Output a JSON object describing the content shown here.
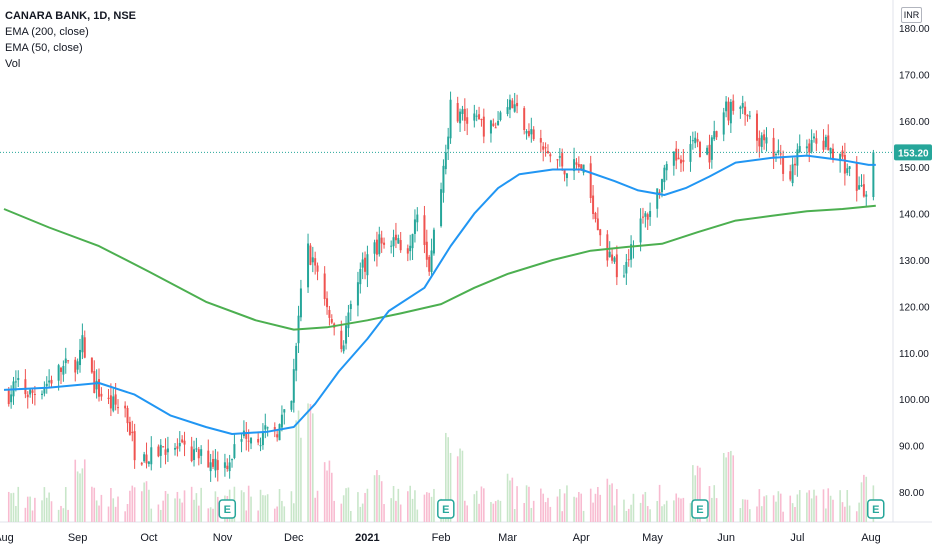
{
  "legend": {
    "symbol": "CANARA BANK, 1D, NSE",
    "ema200": "EMA (200, close)",
    "ema50": "EMA (50, close)",
    "vol": "Vol"
  },
  "currency_label": "INR",
  "earnings_marker_label": "E",
  "colors": {
    "up": "#26a69a",
    "down": "#ef5350",
    "ema200": "#4caf50",
    "ema50": "#2196f3",
    "price_tag": "#26a69a",
    "price_line": "#26a69a",
    "vol_up": "#c8e6c9",
    "vol_down": "#f8bbd0"
  },
  "chart_data": {
    "type": "candlestick",
    "y_axis": {
      "range": [
        76,
        186
      ],
      "ticks": [
        "180.00",
        "170.00",
        "160.00",
        "150.00",
        "140.00",
        "130.00",
        "120.00",
        "110.00",
        "100.00",
        "90.00",
        "80.00"
      ]
    },
    "x_axis": {
      "range_days": [
        "2020-08-01",
        "2021-08-06"
      ],
      "tick_labels": [
        {
          "date": "2020-08-01",
          "label": "Aug"
        },
        {
          "date": "2020-09-01",
          "label": "Sep"
        },
        {
          "date": "2020-10-01",
          "label": "Oct"
        },
        {
          "date": "2020-11-01",
          "label": "Nov"
        },
        {
          "date": "2020-12-01",
          "label": "Dec"
        },
        {
          "date": "2021-01-01",
          "label": "2021"
        },
        {
          "date": "2021-02-01",
          "label": "Feb"
        },
        {
          "date": "2021-03-01",
          "label": "Mar"
        },
        {
          "date": "2021-04-01",
          "label": "Apr"
        },
        {
          "date": "2021-05-01",
          "label": "May"
        },
        {
          "date": "2021-06-01",
          "label": "Jun"
        },
        {
          "date": "2021-07-01",
          "label": "Jul"
        },
        {
          "date": "2021-08-01",
          "label": "Aug"
        }
      ]
    },
    "last_price": 153.2,
    "last_price_label": "153.20",
    "earnings_dates": [
      "2020-11-03",
      "2021-02-03",
      "2021-05-21",
      "2021-08-03"
    ],
    "close_path": [
      [
        "2020-08-01",
        100
      ],
      [
        "2020-08-06",
        103
      ],
      [
        "2020-08-12",
        101
      ],
      [
        "2020-08-18",
        103
      ],
      [
        "2020-08-24",
        106
      ],
      [
        "2020-08-31",
        108
      ],
      [
        "2020-09-03",
        112
      ],
      [
        "2020-09-08",
        103
      ],
      [
        "2020-09-14",
        99
      ],
      [
        "2020-09-21",
        98
      ],
      [
        "2020-09-25",
        89
      ],
      [
        "2020-10-01",
        87
      ],
      [
        "2020-10-07",
        90
      ],
      [
        "2020-10-13",
        89
      ],
      [
        "2020-10-19",
        88
      ],
      [
        "2020-10-26",
        87
      ],
      [
        "2020-11-02",
        86
      ],
      [
        "2020-11-06",
        89
      ],
      [
        "2020-11-11",
        93
      ],
      [
        "2020-11-18",
        92
      ],
      [
        "2020-11-25",
        94
      ],
      [
        "2020-11-30",
        99
      ],
      [
        "2020-12-03",
        118
      ],
      [
        "2020-12-06",
        133
      ],
      [
        "2020-12-11",
        128
      ],
      [
        "2020-12-17",
        117
      ],
      [
        "2020-12-21",
        111
      ],
      [
        "2020-12-28",
        127
      ],
      [
        "2021-01-04",
        133
      ],
      [
        "2021-01-11",
        135
      ],
      [
        "2021-01-18",
        133
      ],
      [
        "2021-01-22",
        142
      ],
      [
        "2021-01-27",
        129
      ],
      [
        "2021-02-01",
        146
      ],
      [
        "2021-02-05",
        163
      ],
      [
        "2021-02-12",
        160
      ],
      [
        "2021-02-18",
        159
      ],
      [
        "2021-02-23",
        158
      ],
      [
        "2021-03-01",
        165
      ],
      [
        "2021-03-08",
        160
      ],
      [
        "2021-03-15",
        154
      ],
      [
        "2021-03-20",
        152
      ],
      [
        "2021-03-26",
        150
      ],
      [
        "2021-04-01",
        150
      ],
      [
        "2021-04-06",
        142
      ],
      [
        "2021-04-12",
        131
      ],
      [
        "2021-04-18",
        127
      ],
      [
        "2021-04-23",
        135
      ],
      [
        "2021-04-29",
        140
      ],
      [
        "2021-05-05",
        147
      ],
      [
        "2021-05-11",
        152
      ],
      [
        "2021-05-18",
        155
      ],
      [
        "2021-05-25",
        153
      ],
      [
        "2021-06-01",
        162
      ],
      [
        "2021-06-07",
        163
      ],
      [
        "2021-06-14",
        156
      ],
      [
        "2021-06-21",
        153
      ],
      [
        "2021-06-28",
        149
      ],
      [
        "2021-07-04",
        155
      ],
      [
        "2021-07-10",
        155
      ],
      [
        "2021-07-16",
        154
      ],
      [
        "2021-07-22",
        150
      ],
      [
        "2021-07-27",
        145
      ],
      [
        "2021-07-30",
        145
      ],
      [
        "2021-08-02",
        153.2
      ]
    ],
    "ema50": [
      [
        "2020-08-01",
        102
      ],
      [
        "2020-08-20",
        102.5
      ],
      [
        "2020-09-10",
        103.5
      ],
      [
        "2020-09-25",
        101
      ],
      [
        "2020-10-10",
        96.5
      ],
      [
        "2020-10-25",
        94
      ],
      [
        "2020-11-05",
        92.5
      ],
      [
        "2020-11-20",
        93
      ],
      [
        "2020-12-01",
        94
      ],
      [
        "2020-12-10",
        99
      ],
      [
        "2020-12-20",
        106
      ],
      [
        "2021-01-01",
        113
      ],
      [
        "2021-01-10",
        119
      ],
      [
        "2021-01-25",
        124
      ],
      [
        "2021-02-05",
        133
      ],
      [
        "2021-02-15",
        140
      ],
      [
        "2021-02-25",
        145.5
      ],
      [
        "2021-03-06",
        148.5
      ],
      [
        "2021-03-20",
        149.5
      ],
      [
        "2021-04-01",
        149.5
      ],
      [
        "2021-04-15",
        147
      ],
      [
        "2021-04-25",
        145
      ],
      [
        "2021-05-06",
        144
      ],
      [
        "2021-05-15",
        145.5
      ],
      [
        "2021-05-25",
        148
      ],
      [
        "2021-06-05",
        151
      ],
      [
        "2021-06-20",
        152
      ],
      [
        "2021-07-05",
        152.5
      ],
      [
        "2021-07-20",
        151.5
      ],
      [
        "2021-07-31",
        150.5
      ],
      [
        "2021-08-03",
        150.5
      ]
    ],
    "ema200": [
      [
        "2020-08-01",
        141
      ],
      [
        "2020-08-20",
        137
      ],
      [
        "2020-09-10",
        133
      ],
      [
        "2020-10-01",
        127.5
      ],
      [
        "2020-10-25",
        121
      ],
      [
        "2020-11-15",
        117
      ],
      [
        "2020-12-01",
        115
      ],
      [
        "2020-12-15",
        115.5
      ],
      [
        "2021-01-01",
        117
      ],
      [
        "2021-01-15",
        118.5
      ],
      [
        "2021-02-01",
        120.5
      ],
      [
        "2021-02-15",
        124
      ],
      [
        "2021-03-01",
        127
      ],
      [
        "2021-03-20",
        130
      ],
      [
        "2021-04-05",
        132
      ],
      [
        "2021-04-20",
        132.8
      ],
      [
        "2021-05-05",
        133.5
      ],
      [
        "2021-05-20",
        136
      ],
      [
        "2021-06-05",
        138.5
      ],
      [
        "2021-06-20",
        139.5
      ],
      [
        "2021-07-05",
        140.5
      ],
      [
        "2021-07-20",
        141
      ],
      [
        "2021-08-03",
        141.7
      ]
    ],
    "volume_scale_note": "relative volume 0-1",
    "volume_spikes": [
      [
        "2020-08-05",
        0.15
      ],
      [
        "2020-09-02",
        0.55
      ],
      [
        "2020-09-28",
        0.35
      ],
      [
        "2020-12-04",
        0.9
      ],
      [
        "2020-12-07",
        1.0
      ],
      [
        "2020-12-15",
        0.55
      ],
      [
        "2021-01-05",
        0.45
      ],
      [
        "2021-02-05",
        0.75
      ],
      [
        "2021-02-08",
        0.65
      ],
      [
        "2021-03-01",
        0.4
      ],
      [
        "2021-04-12",
        0.35
      ],
      [
        "2021-05-20",
        0.5
      ],
      [
        "2021-06-02",
        0.65
      ],
      [
        "2021-07-30",
        0.45
      ]
    ]
  }
}
